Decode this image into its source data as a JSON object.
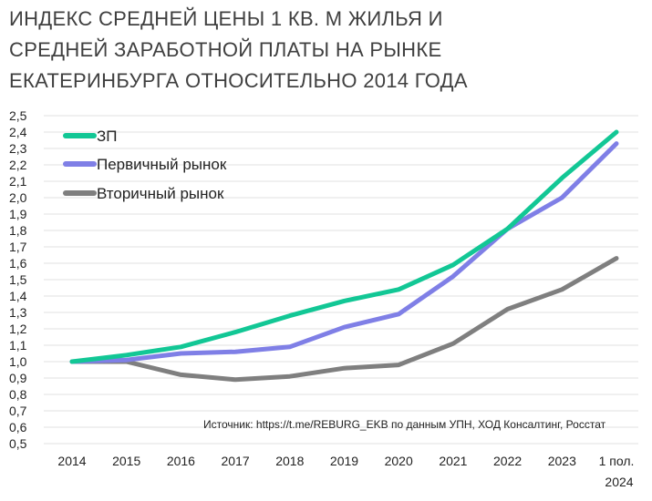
{
  "chart_data": {
    "type": "line",
    "title_lines": [
      "ИНДЕКС СРЕДНЕЙ ЦЕНЫ 1 КВ. М ЖИЛЬЯ И",
      "СРЕДНЕЙ  ЗАРАБОТНОЙ ПЛАТЫ НА РЫНКЕ",
      "ЕКАТЕРИНБУРГА ОТНОСИТЕЛЬНО 2014 ГОДА"
    ],
    "categories": [
      "2014",
      "2015",
      "2016",
      "2017",
      "2018",
      "2019",
      "2020",
      "2021",
      "2022",
      "2023",
      "1 пол. 2024"
    ],
    "category_lines": [
      [
        "2014"
      ],
      [
        "2015"
      ],
      [
        "2016"
      ],
      [
        "2017"
      ],
      [
        "2018"
      ],
      [
        "2019"
      ],
      [
        "2020"
      ],
      [
        "2021"
      ],
      [
        "2022"
      ],
      [
        "2023"
      ],
      [
        "1 пол.",
        "2024"
      ]
    ],
    "series": [
      {
        "name": "ЗП",
        "color": "#12c795",
        "values": [
          1.0,
          1.04,
          1.09,
          1.18,
          1.28,
          1.37,
          1.44,
          1.59,
          1.81,
          2.12,
          2.4
        ]
      },
      {
        "name": "Первичный рынок",
        "color": "#7f7fe6",
        "values": [
          1.0,
          1.01,
          1.05,
          1.06,
          1.09,
          1.21,
          1.29,
          1.52,
          1.81,
          2.0,
          2.33
        ]
      },
      {
        "name": "Вторичный рынок",
        "color": "#7f7f7f",
        "values": [
          1.0,
          1.0,
          0.92,
          0.89,
          0.91,
          0.96,
          0.98,
          1.11,
          1.32,
          1.44,
          1.63
        ]
      }
    ],
    "yticks": [
      "0,5",
      "0,6",
      "0,7",
      "0,8",
      "0,9",
      "1,0",
      "1,1",
      "1,2",
      "1,3",
      "1,4",
      "1,5",
      "1,6",
      "1,7",
      "1,8",
      "1,9",
      "2,0",
      "2,1",
      "2,2",
      "2,3",
      "2,4",
      "2,5"
    ],
    "ylim": [
      0.5,
      2.5
    ],
    "grid": true,
    "legend_position": "top-left",
    "source_note": "Источник: https://t.me/REBURG_EKB по данным УПН, ХОД Консалтинг, Росстат"
  }
}
